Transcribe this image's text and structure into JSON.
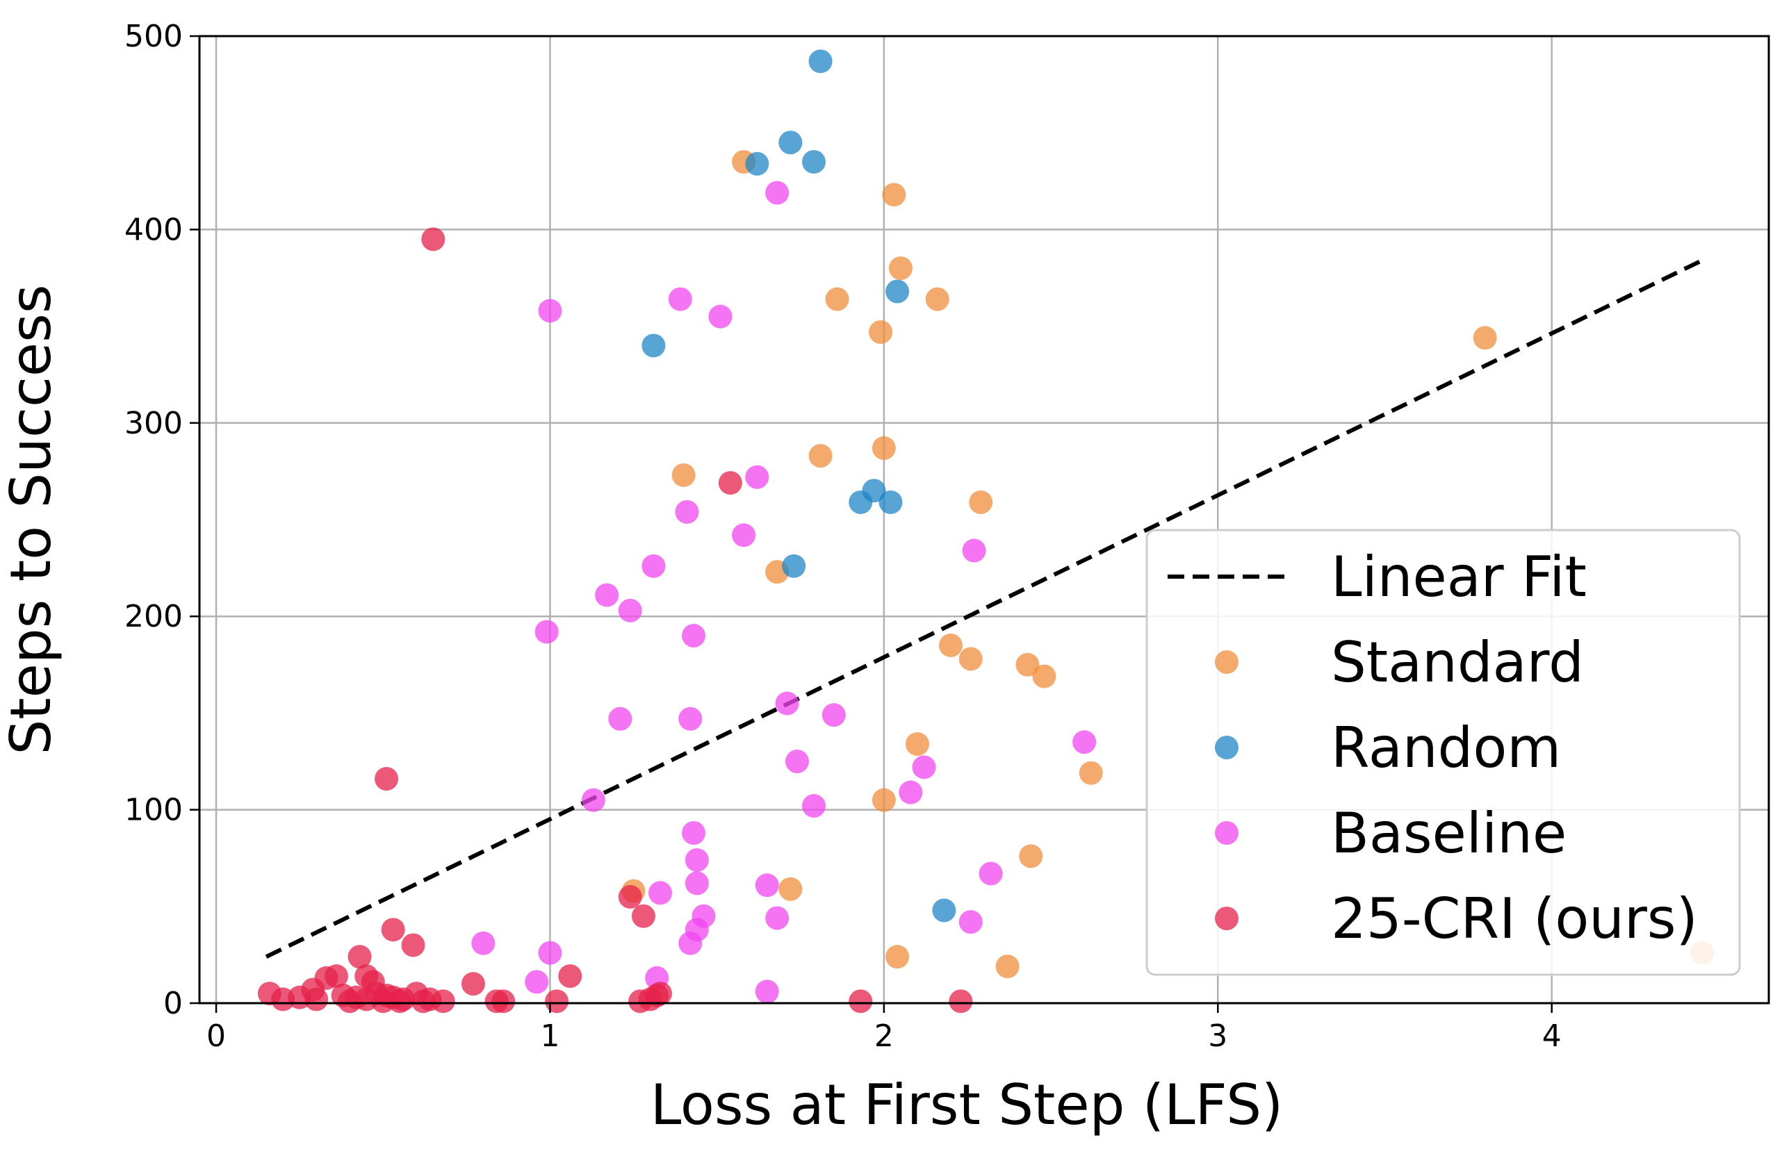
{
  "chart_data": {
    "type": "scatter",
    "xlabel": "Loss at First Step (LFS)",
    "ylabel": "Steps to Success",
    "xlim": [
      -0.05,
      4.65
    ],
    "ylim": [
      0,
      500
    ],
    "xticks": [
      0,
      1,
      2,
      3,
      4
    ],
    "yticks": [
      0,
      100,
      200,
      300,
      400,
      500
    ],
    "xtick_labels": [
      "0",
      "1",
      "2",
      "3",
      "4"
    ],
    "ytick_labels": [
      "0",
      "100",
      "200",
      "300",
      "400",
      "500"
    ],
    "grid": true,
    "legend_position": "lower-right",
    "fit": {
      "name": "Linear Fit",
      "style": "dashed",
      "color": "#000000",
      "x": [
        0.15,
        4.45
      ],
      "y": [
        24,
        384
      ]
    },
    "series": [
      {
        "name": "Standard",
        "color": "#f28e3c",
        "points": [
          [
            1.58,
            435
          ],
          [
            2.03,
            418
          ],
          [
            2.05,
            380
          ],
          [
            1.86,
            364
          ],
          [
            2.16,
            364
          ],
          [
            1.99,
            347
          ],
          [
            3.8,
            344
          ],
          [
            2.0,
            287
          ],
          [
            1.81,
            283
          ],
          [
            1.4,
            273
          ],
          [
            2.29,
            259
          ],
          [
            1.68,
            223
          ],
          [
            2.2,
            185
          ],
          [
            2.26,
            178
          ],
          [
            2.43,
            175
          ],
          [
            2.48,
            169
          ],
          [
            2.1,
            134
          ],
          [
            2.62,
            119
          ],
          [
            2.0,
            105
          ],
          [
            2.44,
            76
          ],
          [
            1.25,
            58
          ],
          [
            1.72,
            59
          ],
          [
            2.04,
            24
          ],
          [
            2.37,
            19
          ],
          [
            4.45,
            26
          ]
        ]
      },
      {
        "name": "Random",
        "color": "#1f86c7",
        "points": [
          [
            1.81,
            487
          ],
          [
            1.72,
            445
          ],
          [
            1.79,
            435
          ],
          [
            1.62,
            434
          ],
          [
            2.04,
            368
          ],
          [
            1.31,
            340
          ],
          [
            1.97,
            265
          ],
          [
            1.93,
            259
          ],
          [
            2.02,
            259
          ],
          [
            1.73,
            226
          ],
          [
            2.18,
            48
          ]
        ]
      },
      {
        "name": "Baseline",
        "color": "#f046f0",
        "points": [
          [
            1.68,
            419
          ],
          [
            1.39,
            364
          ],
          [
            1.0,
            358
          ],
          [
            1.51,
            355
          ],
          [
            1.62,
            272
          ],
          [
            1.41,
            254
          ],
          [
            1.58,
            242
          ],
          [
            2.27,
            234
          ],
          [
            1.31,
            226
          ],
          [
            1.17,
            211
          ],
          [
            1.24,
            203
          ],
          [
            0.99,
            192
          ],
          [
            1.43,
            190
          ],
          [
            1.71,
            155
          ],
          [
            1.21,
            147
          ],
          [
            1.42,
            147
          ],
          [
            1.85,
            149
          ],
          [
            2.6,
            135
          ],
          [
            1.74,
            125
          ],
          [
            2.12,
            122
          ],
          [
            2.08,
            109
          ],
          [
            1.13,
            105
          ],
          [
            1.79,
            102
          ],
          [
            1.43,
            88
          ],
          [
            1.44,
            74
          ],
          [
            2.32,
            67
          ],
          [
            1.65,
            61
          ],
          [
            1.44,
            62
          ],
          [
            1.33,
            57
          ],
          [
            1.46,
            45
          ],
          [
            1.68,
            44
          ],
          [
            1.44,
            38
          ],
          [
            2.26,
            42
          ],
          [
            0.8,
            31
          ],
          [
            1.42,
            31
          ],
          [
            1.0,
            26
          ],
          [
            1.32,
            13
          ],
          [
            0.96,
            11
          ],
          [
            1.65,
            6
          ]
        ]
      },
      {
        "name": "25-CRI (ours)",
        "color": "#e5224b",
        "points": [
          [
            0.65,
            395
          ],
          [
            1.54,
            269
          ],
          [
            0.51,
            116
          ],
          [
            1.24,
            55
          ],
          [
            1.28,
            45
          ],
          [
            0.53,
            38
          ],
          [
            0.59,
            30
          ],
          [
            0.43,
            24
          ],
          [
            0.36,
            14
          ],
          [
            0.45,
            14
          ],
          [
            0.47,
            11
          ],
          [
            1.06,
            14
          ],
          [
            0.77,
            10
          ],
          [
            0.33,
            13
          ],
          [
            0.29,
            7
          ],
          [
            0.16,
            5
          ],
          [
            0.2,
            2
          ],
          [
            0.25,
            3
          ],
          [
            0.38,
            4
          ],
          [
            0.42,
            3
          ],
          [
            0.48,
            5
          ],
          [
            0.51,
            4
          ],
          [
            0.53,
            3
          ],
          [
            0.56,
            2
          ],
          [
            0.6,
            5
          ],
          [
            0.64,
            2
          ],
          [
            0.68,
            1
          ],
          [
            0.84,
            1
          ],
          [
            0.86,
            1
          ],
          [
            1.02,
            1
          ],
          [
            1.27,
            1
          ],
          [
            1.3,
            2
          ],
          [
            1.32,
            4
          ],
          [
            1.33,
            5
          ],
          [
            1.93,
            1
          ],
          [
            2.23,
            1
          ],
          [
            0.3,
            2
          ],
          [
            0.4,
            1
          ],
          [
            0.45,
            2
          ],
          [
            0.5,
            1
          ],
          [
            0.55,
            1
          ],
          [
            0.62,
            1
          ]
        ]
      }
    ]
  }
}
